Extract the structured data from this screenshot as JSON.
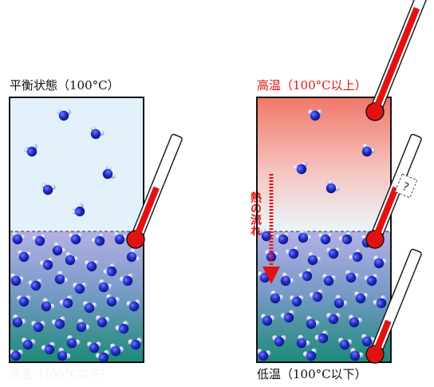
{
  "left_panel": {
    "title": "平衡状態（100°C）",
    "bottom_label": "液温（100°C以下）"
  },
  "right_panel": {
    "top_label": "高温（100°C以上）",
    "bottom_label": "低温（100°C以下）",
    "heat_flow_label": "熱の流れ",
    "question_mark": "?"
  },
  "colors": {
    "vapor_left": "#e3f1fb",
    "liquid_top": "#a9a6df",
    "liquid_bottom": "#1f8d7b",
    "hot_top": "#f07a6c",
    "hot_fade": "#eaf6fb",
    "molecule_oxygen": "#1d29c8",
    "molecule_hydrogen": "#a9b0e6",
    "thermometer_fill": "#e31212",
    "arrow": "#e31212"
  }
}
